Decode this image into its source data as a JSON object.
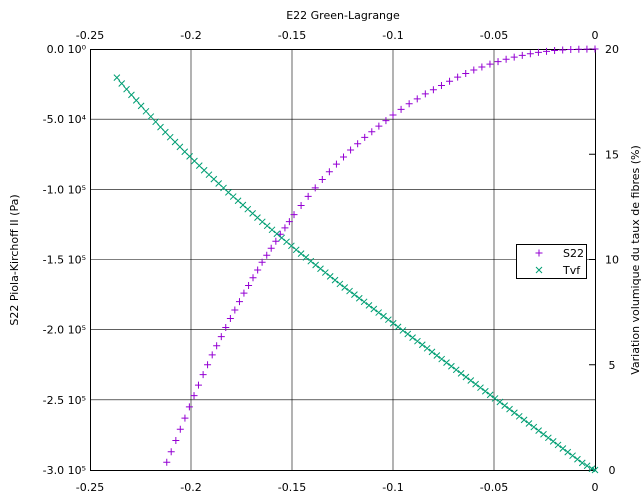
{
  "chart_data": {
    "type": "scatter",
    "title": "",
    "top_xlabel": "E22 Green-Lagrange",
    "ylabel_left": "S22 Piola-Kirchoff II (Pa)",
    "ylabel_right": "Variation volumique du taux de fibres (%)",
    "xlim": [
      -0.25,
      0
    ],
    "ylim_left": [
      -300000,
      0
    ],
    "ylim_right": [
      0,
      20
    ],
    "grid": true,
    "legend_position": "center-right",
    "x_ticks": [
      {
        "value": -0.25,
        "label": "-0.25"
      },
      {
        "value": -0.2,
        "label": "-0.2"
      },
      {
        "value": -0.15,
        "label": "-0.15"
      },
      {
        "value": -0.1,
        "label": "-0.1"
      },
      {
        "value": -0.05,
        "label": "-0.05"
      },
      {
        "value": 0,
        "label": "0"
      }
    ],
    "y_left_ticks": [
      {
        "value": 0,
        "label": "0.0 10⁰"
      },
      {
        "value": -50000,
        "label": "-5.0 10⁴"
      },
      {
        "value": -100000,
        "label": "-1.0 10⁵"
      },
      {
        "value": -150000,
        "label": "-1.5 10⁵"
      },
      {
        "value": -200000,
        "label": "-2.0 10⁵"
      },
      {
        "value": -250000,
        "label": "-2.5 10⁵"
      },
      {
        "value": -300000,
        "label": "-3.0 10⁵"
      }
    ],
    "y_right_ticks": [
      {
        "value": 20,
        "label": "20"
      },
      {
        "value": 15,
        "label": "15"
      },
      {
        "value": 10,
        "label": "10"
      },
      {
        "value": 5,
        "label": "5"
      },
      {
        "value": 0,
        "label": "0"
      }
    ],
    "series": [
      {
        "name": "S22",
        "axis": "left",
        "marker": "plus",
        "color": "#9400d3",
        "x": [
          -0.212,
          -0.2098,
          -0.2075,
          -0.2053,
          -0.203,
          -0.2008,
          -0.1985,
          -0.1963,
          -0.194,
          -0.1918,
          -0.1895,
          -0.1873,
          -0.185,
          -0.1828,
          -0.1805,
          -0.1783,
          -0.176,
          -0.1738,
          -0.1715,
          -0.1693,
          -0.167,
          -0.1648,
          -0.1625,
          -0.1603,
          -0.158,
          -0.1558,
          -0.1535,
          -0.1513,
          -0.149,
          -0.1455,
          -0.142,
          -0.1385,
          -0.135,
          -0.1315,
          -0.128,
          -0.1245,
          -0.121,
          -0.1175,
          -0.114,
          -0.1105,
          -0.107,
          -0.1035,
          -0.1,
          -0.096,
          -0.092,
          -0.088,
          -0.084,
          -0.08,
          -0.076,
          -0.072,
          -0.068,
          -0.064,
          -0.06,
          -0.056,
          -0.052,
          -0.048,
          -0.044,
          -0.04,
          -0.036,
          -0.032,
          -0.028,
          -0.024,
          -0.02,
          -0.016,
          -0.012,
          -0.008,
          -0.004,
          0.0
        ],
        "y": [
          -294500,
          -287000,
          -279000,
          -271000,
          -263000,
          -255000,
          -247000,
          -239500,
          -232000,
          -225000,
          -218000,
          -211500,
          -205000,
          -198500,
          -192000,
          -186000,
          -180000,
          -174000,
          -168500,
          -163000,
          -157500,
          -152000,
          -147000,
          -142000,
          -137000,
          -132000,
          -127500,
          -123000,
          -118000,
          -111500,
          -105000,
          -99000,
          -93000,
          -87500,
          -82000,
          -77000,
          -72000,
          -67500,
          -63000,
          -59000,
          -55000,
          -51000,
          -47000,
          -43000,
          -39000,
          -35500,
          -32000,
          -29000,
          -26000,
          -23000,
          -20000,
          -17500,
          -15000,
          -12800,
          -10800,
          -9000,
          -7300,
          -5800,
          -4500,
          -3400,
          -2400,
          -1700,
          -1100,
          -700,
          -400,
          -200,
          -80,
          0
        ]
      },
      {
        "name": "Tvf",
        "axis": "right",
        "marker": "cross",
        "color": "#009e73",
        "x": [
          -0.2367,
          -0.2343,
          -0.2319,
          -0.2295,
          -0.2271,
          -0.2247,
          -0.2223,
          -0.2199,
          -0.2175,
          -0.2151,
          -0.2127,
          -0.2103,
          -0.2079,
          -0.2055,
          -0.2031,
          -0.2007,
          -0.1983,
          -0.1959,
          -0.1935,
          -0.1911,
          -0.1887,
          -0.1863,
          -0.1839,
          -0.1815,
          -0.1791,
          -0.1767,
          -0.1743,
          -0.1719,
          -0.1695,
          -0.1671,
          -0.1647,
          -0.1623,
          -0.1599,
          -0.1575,
          -0.1551,
          -0.1527,
          -0.1503,
          -0.1479,
          -0.1455,
          -0.1431,
          -0.1407,
          -0.1383,
          -0.1359,
          -0.1335,
          -0.1311,
          -0.1287,
          -0.1263,
          -0.1239,
          -0.1215,
          -0.1191,
          -0.1167,
          -0.1143,
          -0.1119,
          -0.1095,
          -0.1071,
          -0.1047,
          -0.1023,
          -0.0999,
          -0.0975,
          -0.0951,
          -0.0927,
          -0.0903,
          -0.0879,
          -0.0855,
          -0.0831,
          -0.0807,
          -0.0783,
          -0.0759,
          -0.0735,
          -0.0711,
          -0.0687,
          -0.0663,
          -0.0639,
          -0.0615,
          -0.0591,
          -0.0567,
          -0.0543,
          -0.0519,
          -0.0495,
          -0.0471,
          -0.0447,
          -0.0423,
          -0.0399,
          -0.0375,
          -0.0351,
          -0.0327,
          -0.0303,
          -0.0279,
          -0.0255,
          -0.0231,
          -0.0207,
          -0.0183,
          -0.0159,
          -0.0135,
          -0.0111,
          -0.0087,
          -0.0063,
          -0.0039,
          -0.0015,
          0.0
        ],
        "y": [
          18.64,
          18.36,
          18.09,
          17.82,
          17.56,
          17.3,
          17.04,
          16.79,
          16.54,
          16.29,
          16.05,
          15.81,
          15.58,
          15.35,
          15.12,
          14.9,
          14.68,
          14.46,
          14.24,
          14.03,
          13.82,
          13.61,
          13.4,
          13.19,
          12.99,
          12.79,
          12.59,
          12.39,
          12.19,
          11.99,
          11.79,
          11.6,
          11.41,
          11.22,
          11.03,
          10.84,
          10.65,
          10.46,
          10.28,
          10.1,
          9.92,
          9.74,
          9.56,
          9.38,
          9.2,
          9.02,
          8.84,
          8.67,
          8.5,
          8.33,
          8.16,
          7.99,
          7.82,
          7.65,
          7.48,
          7.31,
          7.14,
          6.97,
          6.8,
          6.63,
          6.46,
          6.29,
          6.12,
          5.95,
          5.78,
          5.61,
          5.44,
          5.27,
          5.1,
          4.93,
          4.76,
          4.59,
          4.42,
          4.25,
          4.08,
          3.91,
          3.74,
          3.57,
          3.4,
          3.23,
          3.06,
          2.89,
          2.72,
          2.55,
          2.38,
          2.21,
          2.04,
          1.87,
          1.7,
          1.53,
          1.36,
          1.19,
          1.02,
          0.85,
          0.68,
          0.51,
          0.34,
          0.2,
          0.06,
          0.0
        ]
      }
    ]
  }
}
